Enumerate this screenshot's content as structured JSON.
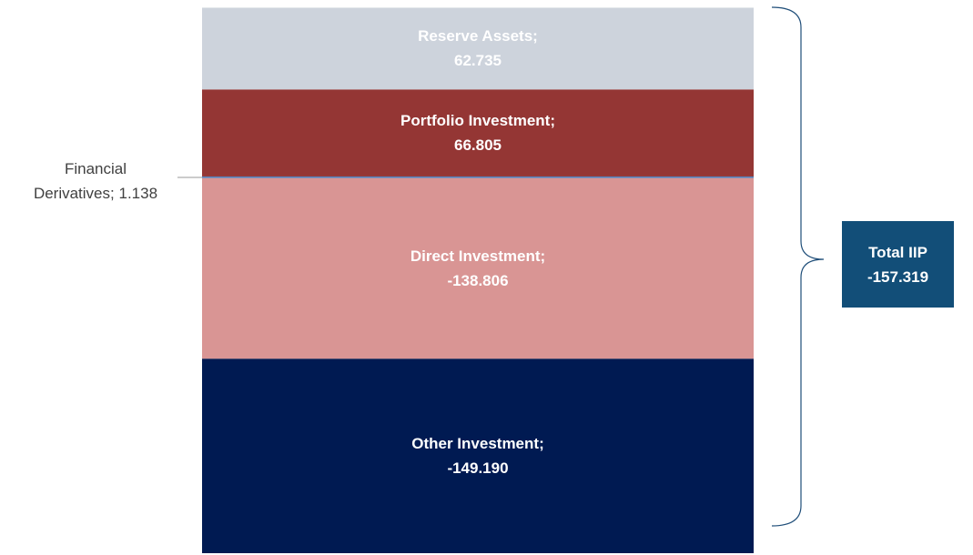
{
  "chart_data": {
    "type": "stacked-bar",
    "separator": ";",
    "ylim": [
      -288,
      131
    ],
    "series": [
      {
        "name": "Direct Investment",
        "color": "#d99594",
        "values": [
          -138.806
        ]
      },
      {
        "name": "Financial Derivatives",
        "color": "#4f81bd",
        "values": [
          1.138
        ]
      },
      {
        "name": "Portfolio Investment",
        "color": "#943634",
        "values": [
          66.805
        ]
      },
      {
        "name": "Other Investment",
        "color": "#001a52",
        "values": [
          -149.19
        ],
        "value_labels": [
          "-149.190"
        ]
      },
      {
        "name": "Reserve Assets",
        "color": "#cdd3dc",
        "values": [
          62.735
        ]
      }
    ],
    "annotation": {
      "label": "Total IIP",
      "value": -157.319
    }
  }
}
